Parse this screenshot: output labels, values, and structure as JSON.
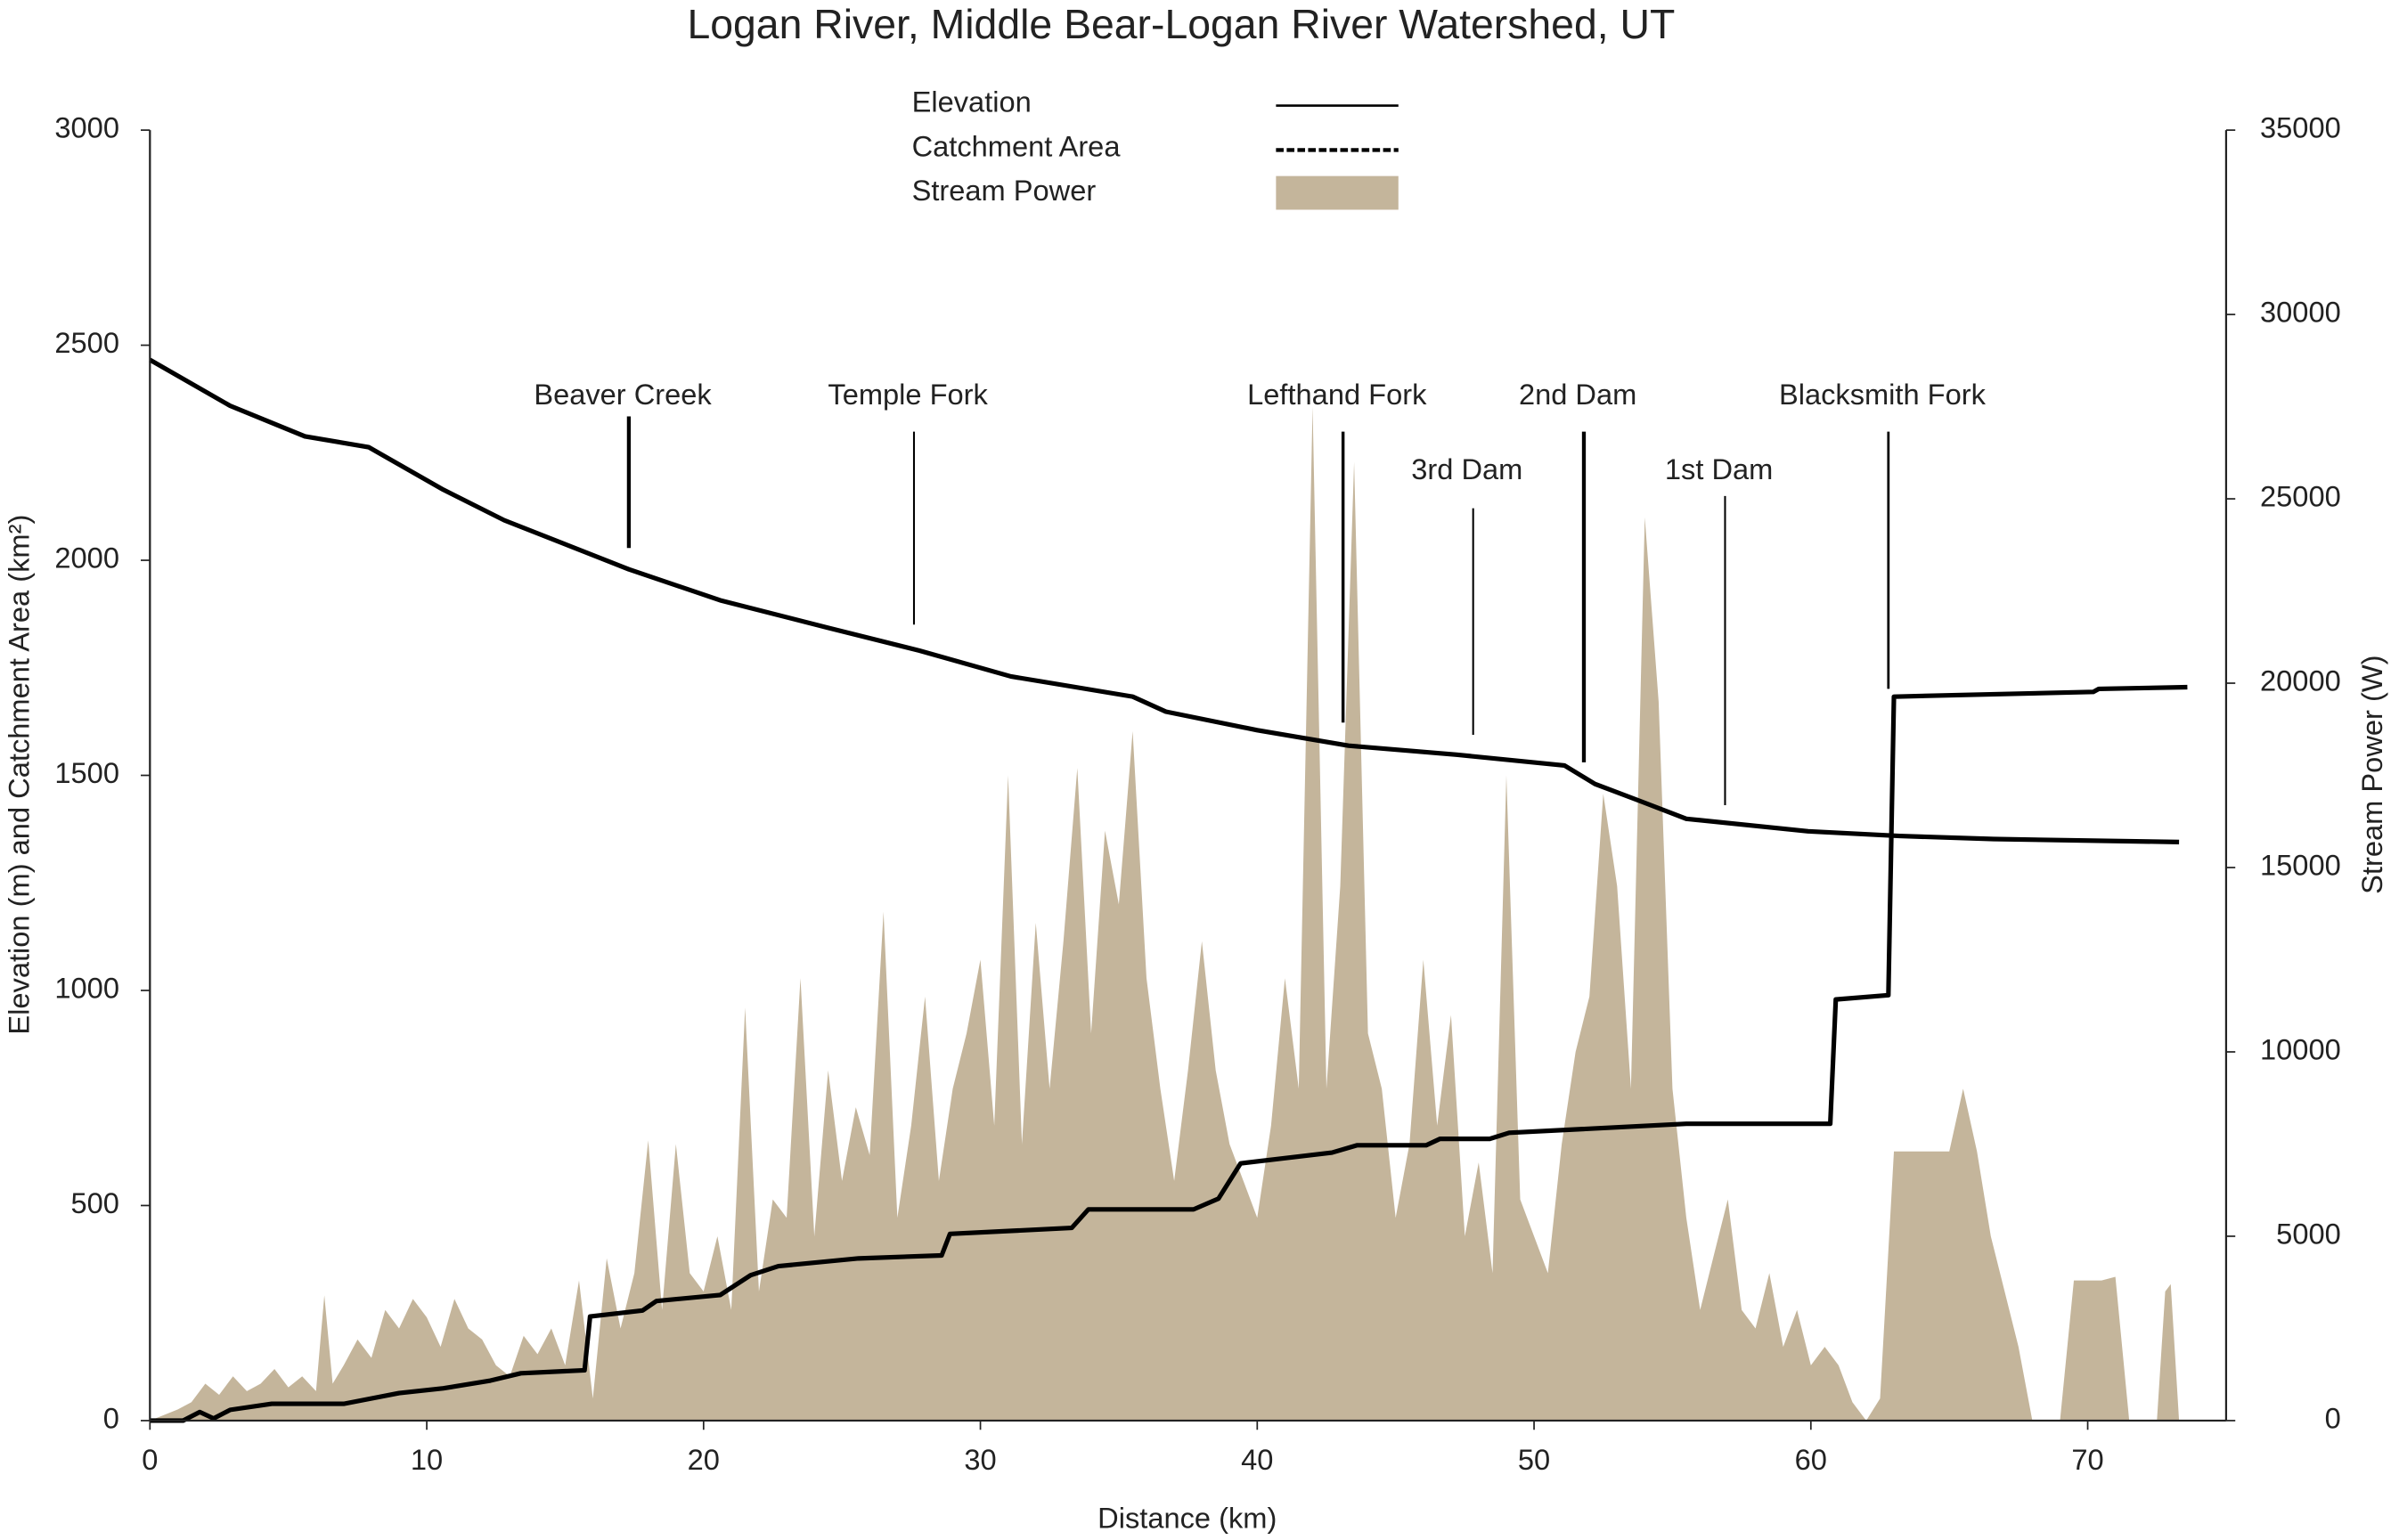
{
  "chart_data": {
    "type": "line",
    "title": "Logan River, Middle Bear-Logan River Watershed, UT",
    "x_label": "Distance (km)",
    "y_label": "Elevation (m) and Catchment Area (km²)",
    "y2_label": "Stream Power (W)",
    "xlim": [
      0,
      75
    ],
    "xticks": [
      0,
      10,
      20,
      30,
      40,
      50,
      60,
      70
    ],
    "ylim": [
      0,
      3000
    ],
    "yticks": [
      0,
      500,
      1000,
      1500,
      2000,
      2500,
      3000
    ],
    "y2lim": [
      0,
      35000
    ],
    "y2ticks": [
      0,
      5000,
      10000,
      15000,
      20000,
      25000,
      30000,
      35000
    ],
    "grid": false,
    "legend": "top",
    "series": [
      {
        "name": "Elevation",
        "type": "line",
        "dash": "solid",
        "color": "#000000",
        "x": [
          0,
          2.9,
          5.6,
          7.9,
          10.6,
          12.8,
          17.3,
          20.6,
          24.5,
          27.8,
          31.1,
          35.5,
          36.7,
          40,
          43.3,
          47.2,
          51.1,
          52.2,
          53.8,
          55.5,
          59.9,
          63.2,
          66.6,
          73.3
        ],
        "values": [
          2466,
          2359,
          2288,
          2263,
          2164,
          2093,
          1979,
          1907,
          1843,
          1790,
          1730,
          1683,
          1648,
          1605,
          1569,
          1548,
          1523,
          1480,
          1441,
          1399,
          1370,
          1359,
          1352,
          1345
        ]
      },
      {
        "name": "Catchment Area",
        "type": "line",
        "dash": "dashed",
        "color": "#000000",
        "x": [
          0,
          1.2,
          1.8,
          2.3,
          2.9,
          4.4,
          7,
          9,
          10.6,
          12.3,
          13.4,
          15.7,
          15.9,
          17.8,
          18.3,
          20.6,
          21.7,
          22.7,
          25.6,
          28.6,
          28.9,
          33.3,
          33.9,
          37.7,
          38.6,
          39.4,
          42.7,
          43.6,
          46.1,
          46.6,
          48.4,
          49.1,
          55.5,
          60.7,
          60.9,
          62.8,
          63,
          70.2,
          70.4,
          73.6
        ],
        "values": [
          0,
          0,
          20,
          5,
          25,
          39,
          39,
          64,
          75,
          93,
          110,
          117,
          242,
          256,
          278,
          292,
          338,
          359,
          377,
          384,
          434,
          448,
          491,
          491,
          516,
          598,
          623,
          640,
          640,
          655,
          655,
          669,
          690,
          690,
          979,
          989,
          1683,
          1694,
          1701,
          1705
        ]
      },
      {
        "name": "Stream Power",
        "type": "area",
        "axis": "y2",
        "color": "#c4b59b",
        "x": [
          0,
          1,
          1.5,
          2,
          2.5,
          3,
          3.5,
          4,
          4.5,
          5,
          5.5,
          6,
          6.3,
          6.6,
          7,
          7.5,
          8,
          8.5,
          9,
          9.5,
          10,
          10.5,
          11,
          11.5,
          12,
          12.5,
          13,
          13.5,
          14,
          14.5,
          15,
          15.5,
          16,
          16.5,
          17,
          17.5,
          18,
          18.5,
          19,
          19.5,
          20,
          20.5,
          21,
          21.5,
          22,
          22.5,
          23,
          23.5,
          24,
          24.5,
          25,
          25.5,
          26,
          26.5,
          27,
          27.5,
          28,
          28.5,
          29,
          29.5,
          30,
          30.5,
          31,
          31.5,
          32,
          32.5,
          33,
          33.5,
          34,
          34.5,
          35,
          35.5,
          36,
          36.5,
          37,
          37.5,
          38,
          38.5,
          39,
          39.5,
          40,
          40.5,
          41,
          41.5,
          42,
          42.5,
          43,
          43.5,
          44,
          44.5,
          45,
          45.5,
          46,
          46.5,
          47,
          47.5,
          48,
          48.5,
          49,
          49.5,
          50,
          50.5,
          51,
          51.5,
          52,
          52.5,
          53,
          53.5,
          54,
          54.5,
          55,
          55.5,
          56,
          56.5,
          57,
          57.5,
          58,
          58.5,
          59,
          59.5,
          60,
          60.5,
          61,
          61.5,
          62,
          62.5,
          63,
          63.5,
          64,
          64.5,
          65,
          65.5,
          66,
          66.5,
          67,
          67.5,
          68,
          69,
          69.5,
          70,
          70.5,
          71,
          71.5,
          72.5,
          72.8,
          73,
          73.3
        ],
        "values": [
          0,
          300,
          500,
          1000,
          700,
          1200,
          800,
          1000,
          1400,
          900,
          1200,
          800,
          3400,
          1000,
          1500,
          2200,
          1700,
          3000,
          2500,
          3300,
          2800,
          2000,
          3300,
          2500,
          2200,
          1500,
          1200,
          2300,
          1800,
          2500,
          1500,
          3800,
          600,
          4400,
          2500,
          4000,
          7600,
          3000,
          7500,
          4000,
          3500,
          5000,
          3000,
          11200,
          3500,
          6000,
          5500,
          12000,
          5000,
          9500,
          6500,
          8500,
          7200,
          13800,
          5500,
          8000,
          11500,
          6500,
          9000,
          10500,
          12500,
          8000,
          17500,
          7500,
          13500,
          9000,
          13000,
          17700,
          10500,
          16000,
          14000,
          18700,
          12000,
          9000,
          6500,
          9500,
          13000,
          9500,
          7500,
          6500,
          5500,
          8000,
          12000,
          9000,
          27500,
          9000,
          14500,
          26000,
          10500,
          9000,
          5500,
          7500,
          12500,
          8000,
          11000,
          5000,
          7000,
          4000,
          17500,
          6000,
          5000,
          4000,
          7500,
          10000,
          11500,
          17000,
          14500,
          9000,
          24500,
          19500,
          9000,
          5500,
          3000,
          4500,
          6000,
          3000,
          2500,
          4000,
          2000,
          3000,
          1500,
          2000,
          1500,
          500,
          0,
          600,
          7300,
          7300,
          7300,
          7300,
          7300,
          9000,
          7300,
          5000,
          3500,
          2000,
          0,
          0,
          3800,
          3800,
          3800,
          3900,
          0,
          0,
          3500,
          3700,
          0
        ]
      }
    ],
    "annotations": [
      {
        "text": "Beaver Creek",
        "x": 17.3
      },
      {
        "text": "Temple Fork",
        "x": 27.6
      },
      {
        "text": "Lefthand Fork",
        "x": 43.1
      },
      {
        "text": "3rd Dam",
        "x": 47.8
      },
      {
        "text": "2nd Dam",
        "x": 51.8
      },
      {
        "text": "1st Dam",
        "x": 56.9
      },
      {
        "text": "Blacksmith Fork",
        "x": 62.8
      }
    ]
  }
}
